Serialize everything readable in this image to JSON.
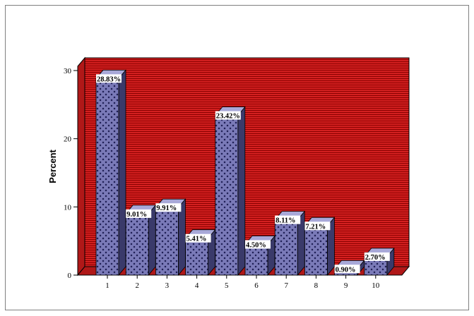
{
  "chart_data": {
    "type": "bar",
    "categories": [
      "1",
      "2",
      "3",
      "4",
      "5",
      "6",
      "7",
      "8",
      "9",
      "10"
    ],
    "values": [
      28.83,
      9.01,
      9.91,
      5.41,
      23.42,
      4.5,
      8.11,
      7.21,
      0.9,
      2.7
    ],
    "data_labels": [
      "28.83%",
      "9.01%",
      "9.91%",
      "5.41%",
      "23.42%",
      "4.50%",
      "8.11%",
      "7.21%",
      "0.90%",
      "2.70%"
    ],
    "xlabel": "",
    "ylabel": "Percent",
    "ylim": [
      0,
      30
    ],
    "yticks": [
      "0",
      "10",
      "20",
      "30"
    ],
    "style": "3d",
    "colors": {
      "wall": "#d42020",
      "wall_lines": "#8a0000",
      "floor": "#b01818",
      "bar_front": "#7a7ab8",
      "bar_pattern": "#1a1a50",
      "bar_side": "#3a3a6a",
      "bar_top": "#a8a8d8"
    }
  }
}
